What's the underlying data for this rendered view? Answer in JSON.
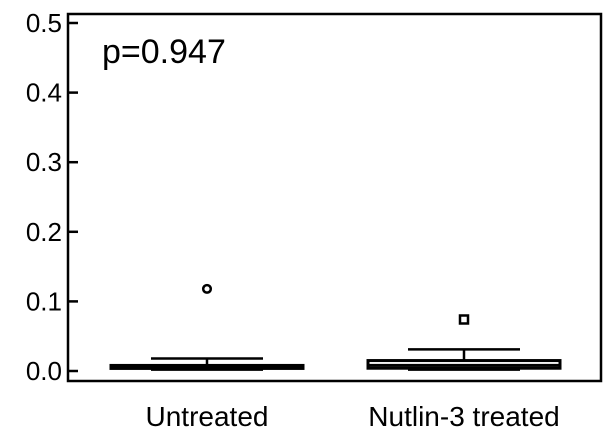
{
  "chart_data": {
    "type": "box",
    "annotation": "p=0.947",
    "categories": [
      "Untreated",
      "Nutlin-3 treated"
    ],
    "ylim": [
      0,
      0.52
    ],
    "yticks": [
      0.0,
      0.1,
      0.2,
      0.3,
      0.4,
      0.5
    ],
    "ytick_labels": [
      "0.0",
      "0.1",
      "0.2",
      "0.3",
      "0.4",
      "0.5"
    ],
    "boxes": [
      {
        "category": "Untreated",
        "whisker_low": 0.002,
        "q1": 0.004,
        "median": 0.006,
        "q3": 0.008,
        "whisker_high": 0.018,
        "outliers": [
          0.118
        ],
        "outlier_marker": "circle"
      },
      {
        "category": "Nutlin-3 treated",
        "whisker_low": 0.002,
        "q1": 0.004,
        "median": 0.008,
        "q3": 0.015,
        "whisker_high": 0.031,
        "outliers": [
          0.074
        ],
        "outlier_marker": "square"
      }
    ],
    "grid": false,
    "legend": "none"
  }
}
